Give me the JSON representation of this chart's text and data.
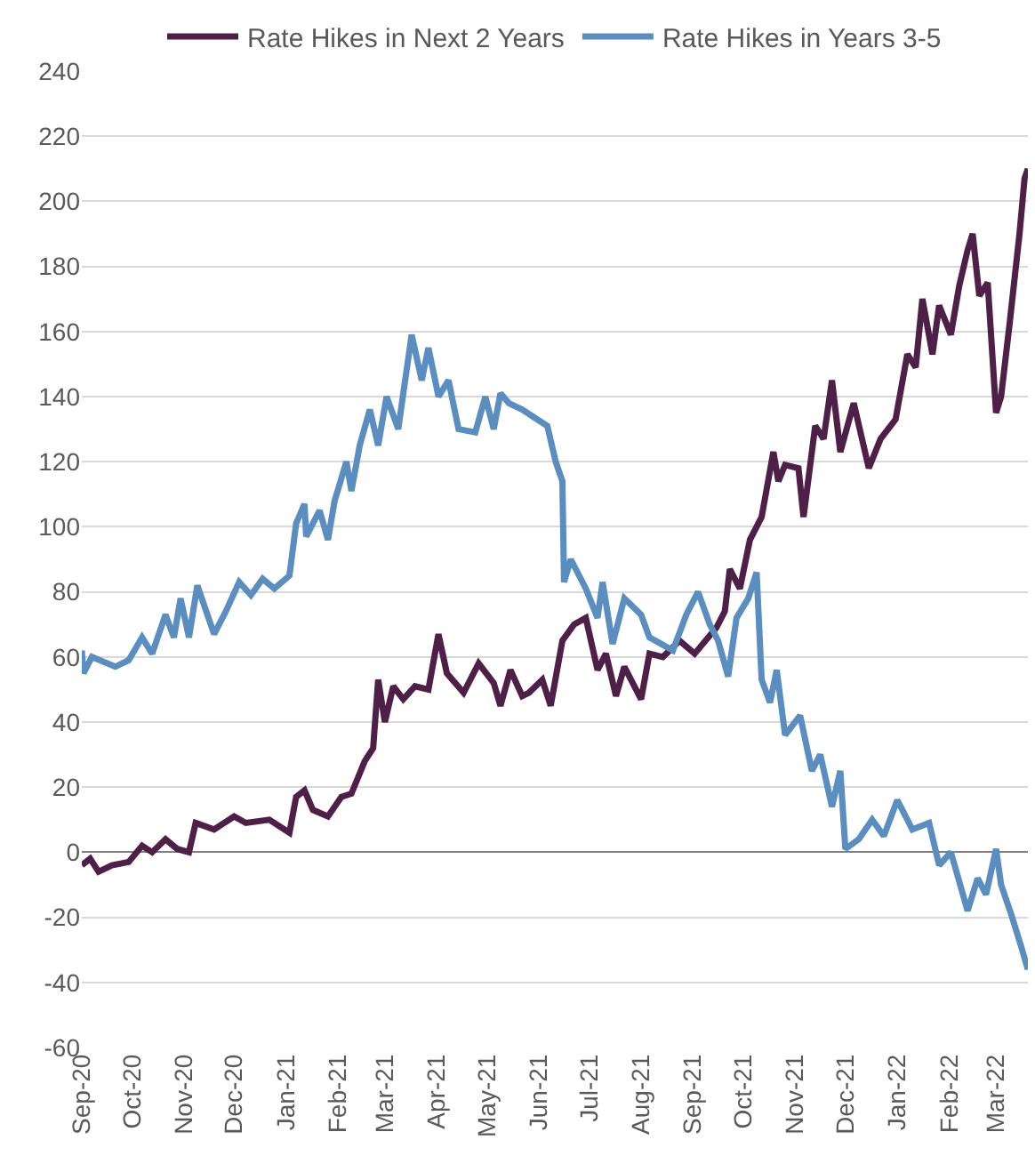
{
  "chart_data": {
    "type": "line",
    "legend": "top",
    "grid": "y",
    "line_style": "solid",
    "marker": "none",
    "xlim": [
      "2020-09-01",
      "2022-03-20"
    ],
    "xticks": [
      {
        "value": "2020-09-01",
        "label": "Sep-20"
      },
      {
        "value": "2020-10-01",
        "label": "Oct-20"
      },
      {
        "value": "2020-11-01",
        "label": "Nov-20"
      },
      {
        "value": "2020-12-01",
        "label": "Dec-20"
      },
      {
        "value": "2021-01-01",
        "label": "Jan-21"
      },
      {
        "value": "2021-02-01",
        "label": "Feb-21"
      },
      {
        "value": "2021-03-01",
        "label": "Mar-21"
      },
      {
        "value": "2021-04-01",
        "label": "Apr-21"
      },
      {
        "value": "2021-05-01",
        "label": "May-21"
      },
      {
        "value": "2021-06-01",
        "label": "Jun-21"
      },
      {
        "value": "2021-07-01",
        "label": "Jul-21"
      },
      {
        "value": "2021-08-01",
        "label": "Aug-21"
      },
      {
        "value": "2021-09-01",
        "label": "Sep-21"
      },
      {
        "value": "2021-10-01",
        "label": "Oct-21"
      },
      {
        "value": "2021-11-01",
        "label": "Nov-21"
      },
      {
        "value": "2021-12-01",
        "label": "Dec-21"
      },
      {
        "value": "2022-01-01",
        "label": "Jan-22"
      },
      {
        "value": "2022-02-01",
        "label": "Feb-22"
      },
      {
        "value": "2022-03-01",
        "label": "Mar-22"
      }
    ],
    "ylim": [
      -60,
      240
    ],
    "yticks": [
      -60,
      -40,
      -20,
      0,
      20,
      40,
      60,
      80,
      100,
      120,
      140,
      160,
      180,
      200,
      220,
      240
    ],
    "series": [
      {
        "name": "Rate Hikes in Next 2 Years",
        "color": "#4e1f47",
        "x": [
          "2020-09-01",
          "2020-09-06",
          "2020-09-11",
          "2020-09-19",
          "2020-09-29",
          "2020-10-07",
          "2020-10-13",
          "2020-10-21",
          "2020-10-28",
          "2020-11-04",
          "2020-11-08",
          "2020-11-19",
          "2020-12-01",
          "2020-12-08",
          "2020-12-22",
          "2021-01-03",
          "2021-01-07",
          "2021-01-12",
          "2021-01-17",
          "2021-01-26",
          "2021-02-03",
          "2021-02-09",
          "2021-02-17",
          "2021-02-22",
          "2021-02-25",
          "2021-03-01",
          "2021-03-06",
          "2021-03-12",
          "2021-03-19",
          "2021-03-27",
          "2021-04-02",
          "2021-04-07",
          "2021-04-17",
          "2021-04-26",
          "2021-05-05",
          "2021-05-09",
          "2021-05-15",
          "2021-05-22",
          "2021-05-26",
          "2021-06-03",
          "2021-06-08",
          "2021-06-15",
          "2021-06-22",
          "2021-06-29",
          "2021-07-06",
          "2021-07-11",
          "2021-07-17",
          "2021-07-22",
          "2021-08-01",
          "2021-08-06",
          "2021-08-14",
          "2021-08-24",
          "2021-09-02",
          "2021-09-15",
          "2021-09-20",
          "2021-09-23",
          "2021-09-29",
          "2021-10-05",
          "2021-10-12",
          "2021-10-19",
          "2021-10-22",
          "2021-10-26",
          "2021-11-03",
          "2021-11-06",
          "2021-11-13",
          "2021-11-18",
          "2021-11-23",
          "2021-11-28",
          "2021-12-06",
          "2021-12-15",
          "2021-12-22",
          "2021-12-31",
          "2022-01-07",
          "2022-01-12",
          "2022-01-16",
          "2022-01-22",
          "2022-01-26",
          "2022-02-02",
          "2022-02-07",
          "2022-02-12",
          "2022-02-15",
          "2022-02-19",
          "2022-02-24",
          "2022-03-01",
          "2022-03-04",
          "2022-03-09",
          "2022-03-15",
          "2022-03-18",
          "2022-03-20"
        ],
        "values": [
          -4,
          -2,
          -6,
          -4,
          -3,
          2,
          0,
          4,
          1,
          0,
          9,
          7,
          11,
          9,
          10,
          6,
          17,
          19,
          13,
          11,
          17,
          18,
          28,
          32,
          53,
          40,
          51,
          47,
          51,
          50,
          67,
          55,
          49,
          58,
          52,
          45,
          56,
          48,
          49,
          53,
          45,
          65,
          70,
          72,
          56,
          61,
          48,
          57,
          47,
          61,
          60,
          65,
          61,
          69,
          74,
          87,
          81,
          96,
          103,
          123,
          114,
          119,
          118,
          103,
          131,
          127,
          145,
          123,
          138,
          118,
          127,
          133,
          153,
          149,
          170,
          153,
          168,
          159,
          174,
          185,
          190,
          171,
          175,
          135,
          140,
          162,
          190,
          207,
          210
        ]
      },
      {
        "name": "Rate Hikes in Years 3-5",
        "color": "#5b8ec0",
        "x": [
          "2020-09-01",
          "2020-09-02",
          "2020-09-07",
          "2020-09-21",
          "2020-09-29",
          "2020-10-07",
          "2020-10-13",
          "2020-10-21",
          "2020-10-26",
          "2020-10-30",
          "2020-11-04",
          "2020-11-09",
          "2020-11-19",
          "2020-11-26",
          "2020-12-04",
          "2020-12-11",
          "2020-12-18",
          "2020-12-25",
          "2021-01-03",
          "2021-01-07",
          "2021-01-12",
          "2021-01-13",
          "2021-01-21",
          "2021-01-26",
          "2021-01-30",
          "2021-02-06",
          "2021-02-09",
          "2021-02-14",
          "2021-02-20",
          "2021-02-25",
          "2021-03-02",
          "2021-03-09",
          "2021-03-12",
          "2021-03-17",
          "2021-03-23",
          "2021-03-27",
          "2021-04-02",
          "2021-04-08",
          "2021-04-14",
          "2021-04-24",
          "2021-04-30",
          "2021-05-05",
          "2021-05-09",
          "2021-05-14",
          "2021-05-22",
          "2021-05-28",
          "2021-06-06",
          "2021-06-11",
          "2021-06-15",
          "2021-06-16",
          "2021-06-20",
          "2021-06-29",
          "2021-07-06",
          "2021-07-09",
          "2021-07-15",
          "2021-07-22",
          "2021-08-01",
          "2021-08-06",
          "2021-08-13",
          "2021-08-20",
          "2021-08-28",
          "2021-09-04",
          "2021-09-11",
          "2021-09-16",
          "2021-09-22",
          "2021-09-27",
          "2021-10-04",
          "2021-10-09",
          "2021-10-12",
          "2021-10-17",
          "2021-10-21",
          "2021-10-26",
          "2021-11-04",
          "2021-11-11",
          "2021-11-16",
          "2021-11-23",
          "2021-11-28",
          "2021-12-01",
          "2021-12-09",
          "2021-12-17",
          "2021-12-24",
          "2022-01-01",
          "2022-01-10",
          "2022-01-20",
          "2022-01-26",
          "2022-02-02",
          "2022-02-12",
          "2022-02-18",
          "2022-02-23",
          "2022-03-01",
          "2022-03-04",
          "2022-03-10",
          "2022-03-16",
          "2022-03-20"
        ],
        "values": [
          62,
          55,
          60,
          57,
          59,
          66,
          61,
          73,
          66,
          78,
          66,
          82,
          67,
          74,
          83,
          79,
          84,
          81,
          85,
          101,
          107,
          97,
          105,
          96,
          108,
          120,
          111,
          125,
          136,
          125,
          140,
          130,
          141,
          159,
          145,
          155,
          140,
          145,
          130,
          129,
          140,
          130,
          141,
          138,
          136,
          134,
          131,
          120,
          114,
          83,
          90,
          81,
          72,
          83,
          64,
          78,
          73,
          66,
          64,
          62,
          73,
          80,
          70,
          65,
          54,
          72,
          78,
          86,
          53,
          46,
          56,
          36,
          42,
          25,
          30,
          14,
          25,
          1,
          4,
          10,
          5,
          16,
          7,
          9,
          -4,
          0,
          -18,
          -8,
          -13,
          1,
          -10,
          -19,
          -29,
          -36
        ]
      }
    ]
  }
}
